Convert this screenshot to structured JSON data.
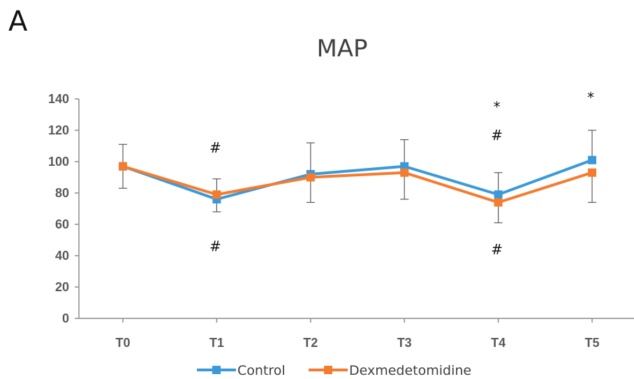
{
  "panel_letter": "A",
  "chart_data": {
    "type": "line",
    "title": "MAP",
    "categories": [
      "T0",
      "T1",
      "T2",
      "T3",
      "T4",
      "T5"
    ],
    "ylim": [
      0,
      140
    ],
    "yticks": [
      0,
      20,
      40,
      60,
      80,
      100,
      120,
      140
    ],
    "grid": false,
    "legend_position": "bottom",
    "series": [
      {
        "name": "Control",
        "color": "#3a9ad9",
        "marker": "square",
        "values": [
          97,
          76,
          92,
          97,
          79,
          101
        ],
        "error_bars": [
          null,
          null,
          20,
          17,
          14,
          19
        ]
      },
      {
        "name": "Dexmedetomidine",
        "color": "#f47c30",
        "marker": "square",
        "values": [
          97,
          79,
          90,
          93,
          74,
          93
        ],
        "error_bars": [
          14,
          11,
          16,
          17,
          13,
          19
        ]
      }
    ],
    "annotations": [
      {
        "category": "T1",
        "value": 109,
        "text": "#"
      },
      {
        "category": "T1",
        "value": 46,
        "text": "#"
      },
      {
        "category": "T4",
        "value": 135,
        "text": "*"
      },
      {
        "category": "T4",
        "value": 117,
        "text": "#"
      },
      {
        "category": "T4",
        "value": 44,
        "text": "#"
      },
      {
        "category": "T5",
        "value": 141,
        "text": "*"
      }
    ]
  }
}
